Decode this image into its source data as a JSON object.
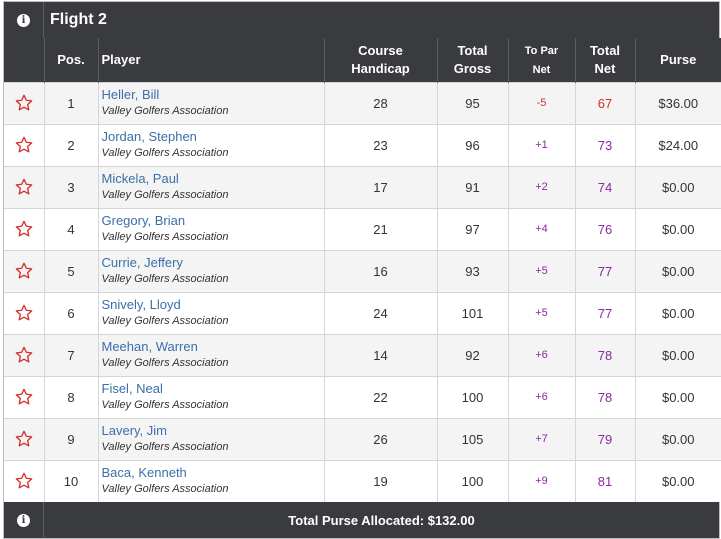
{
  "flight": {
    "title": "Flight 2",
    "info_icon": "info-circle-icon"
  },
  "headers": {
    "pos": "Pos.",
    "player": "Player",
    "course_handicap": [
      "Course",
      "Handicap"
    ],
    "total_gross": [
      "Total",
      "Gross"
    ],
    "to_par_net": [
      "To Par",
      "Net"
    ],
    "total_net": [
      "Total",
      "Net"
    ],
    "purse": "Purse"
  },
  "rows": [
    {
      "pos": "1",
      "name": "Heller, Bill",
      "club": "Valley Golfers Association",
      "course_handicap": "28",
      "total_gross": "95",
      "to_par_net": "-5",
      "total_net": "67",
      "purse": "$36.00",
      "sign": "neg"
    },
    {
      "pos": "2",
      "name": "Jordan, Stephen",
      "club": "Valley Golfers Association",
      "course_handicap": "23",
      "total_gross": "96",
      "to_par_net": "+1",
      "total_net": "73",
      "purse": "$24.00",
      "sign": "pos"
    },
    {
      "pos": "3",
      "name": "Mickela, Paul",
      "club": "Valley Golfers Association",
      "course_handicap": "17",
      "total_gross": "91",
      "to_par_net": "+2",
      "total_net": "74",
      "purse": "$0.00",
      "sign": "pos"
    },
    {
      "pos": "4",
      "name": "Gregory, Brian",
      "club": "Valley Golfers Association",
      "course_handicap": "21",
      "total_gross": "97",
      "to_par_net": "+4",
      "total_net": "76",
      "purse": "$0.00",
      "sign": "pos"
    },
    {
      "pos": "5",
      "name": "Currie, Jeffery",
      "club": "Valley Golfers Association",
      "course_handicap": "16",
      "total_gross": "93",
      "to_par_net": "+5",
      "total_net": "77",
      "purse": "$0.00",
      "sign": "pos"
    },
    {
      "pos": "6",
      "name": "Snively, Lloyd",
      "club": "Valley Golfers Association",
      "course_handicap": "24",
      "total_gross": "101",
      "to_par_net": "+5",
      "total_net": "77",
      "purse": "$0.00",
      "sign": "pos"
    },
    {
      "pos": "7",
      "name": "Meehan, Warren",
      "club": "Valley Golfers Association",
      "course_handicap": "14",
      "total_gross": "92",
      "to_par_net": "+6",
      "total_net": "78",
      "purse": "$0.00",
      "sign": "pos"
    },
    {
      "pos": "8",
      "name": "Fisel, Neal",
      "club": "Valley Golfers Association",
      "course_handicap": "22",
      "total_gross": "100",
      "to_par_net": "+6",
      "total_net": "78",
      "purse": "$0.00",
      "sign": "pos"
    },
    {
      "pos": "9",
      "name": "Lavery, Jim",
      "club": "Valley Golfers Association",
      "course_handicap": "26",
      "total_gross": "105",
      "to_par_net": "+7",
      "total_net": "79",
      "purse": "$0.00",
      "sign": "pos"
    },
    {
      "pos": "10",
      "name": "Baca, Kenneth",
      "club": "Valley Golfers Association",
      "course_handicap": "19",
      "total_gross": "100",
      "to_par_net": "+9",
      "total_net": "81",
      "purse": "$0.00",
      "sign": "pos"
    }
  ],
  "footer": {
    "total_label": "Total Purse Allocated: $132.00"
  },
  "colors": {
    "header_bg": "#3a3b3f",
    "link": "#3a6fa8",
    "negative": "#d0312d",
    "positive": "#8a2b9e",
    "star": "#d0312d"
  },
  "icons": {
    "favorite": "star-outline-icon",
    "info": "info-circle-icon"
  }
}
